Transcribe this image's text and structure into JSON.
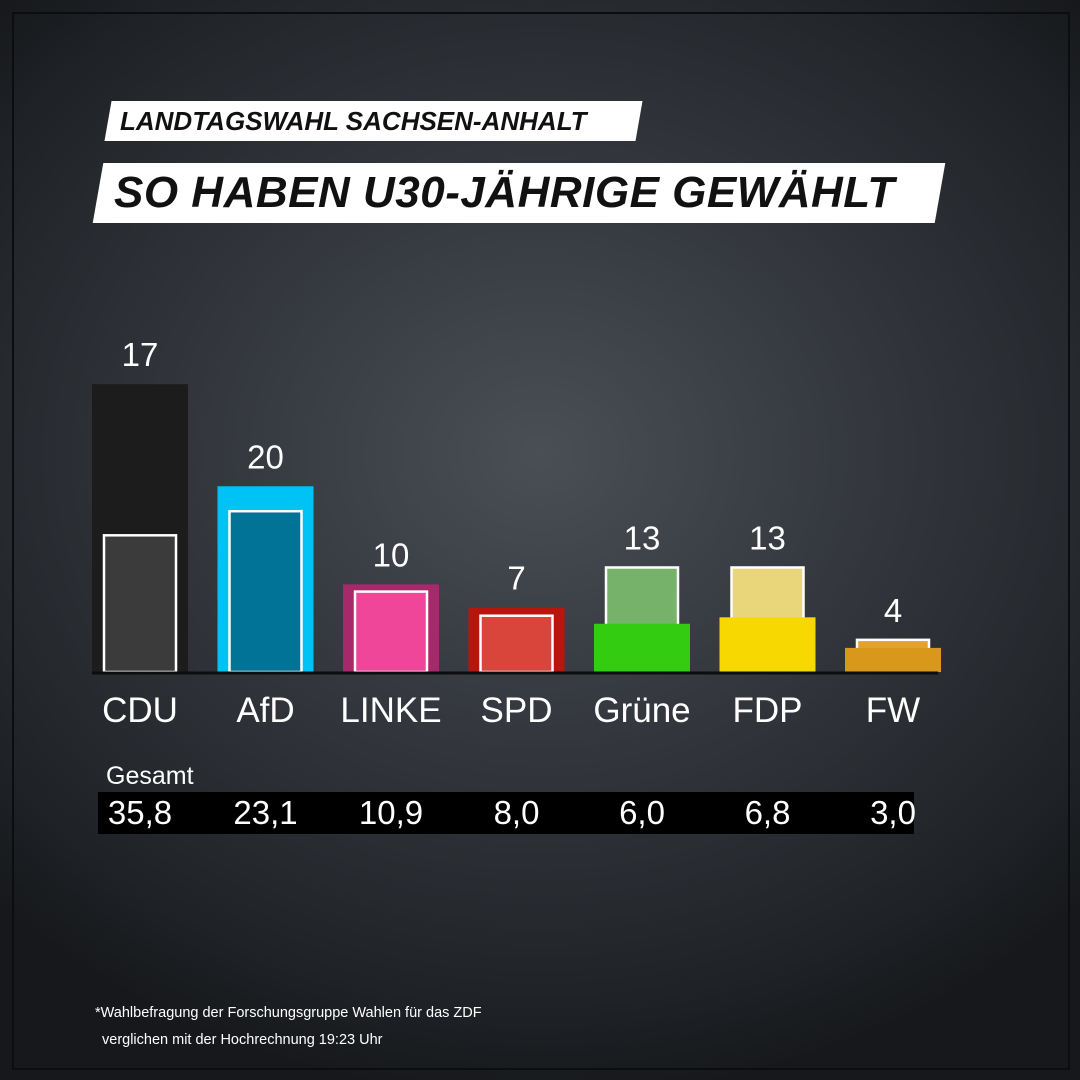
{
  "header": {
    "kicker": "LANDTAGSWAHL SACHSEN-ANHALT",
    "title": "SO HABEN U30-JÄHRIGE GEWÄHLT"
  },
  "chart_data": {
    "type": "bar",
    "categories": [
      "CDU",
      "AfD",
      "LINKE",
      "SPD",
      "Grüne",
      "FDP",
      "FW"
    ],
    "series": [
      {
        "values": [
          17,
          20,
          10,
          7,
          13,
          13,
          4
        ]
      },
      {
        "name": "Gesamt",
        "values": [
          35.8,
          23.1,
          10.9,
          8.0,
          6.0,
          6.8,
          3.0
        ]
      }
    ],
    "labels": [
      "17",
      "20",
      "10",
      "7",
      "13",
      "13",
      "4"
    ],
    "colors": [
      "#1c1c1c",
      "#00c3f5",
      "#a62a6b",
      "#b8150d",
      "#33cc10",
      "#f7d800",
      "#d9971b"
    ],
    "inner_colors": [
      "#3b3b3b",
      "#007396",
      "#f0469a",
      "#d9453a",
      "#77b26a",
      "#ead67a",
      "#e3a22f"
    ],
    "ylim": [
      0,
      40
    ]
  },
  "totals": {
    "label": "Gesamt",
    "values": [
      "35,8",
      "23,1",
      "10,9",
      "8,0",
      "6,0",
      "6,8",
      "3,0"
    ]
  },
  "footnote": {
    "line1": "*Wahlbefragung der Forschungsgruppe Wahlen für das ZDF",
    "line2": "verglichen mit der Hochrechnung 19:23 Uhr"
  }
}
